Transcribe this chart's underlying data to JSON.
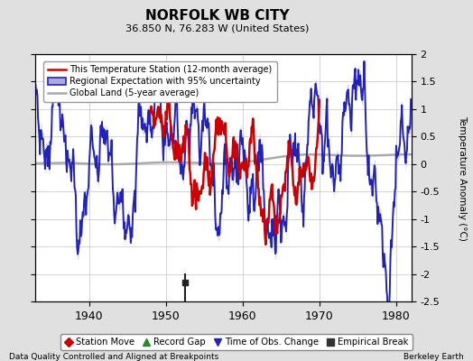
{
  "title": "NORFOLK WB CITY",
  "subtitle": "36.850 N, 76.283 W (United States)",
  "ylabel": "Temperature Anomaly (°C)",
  "xlim": [
    1933,
    1982
  ],
  "ylim": [
    -2.5,
    2.0
  ],
  "yticks": [
    -2.5,
    -2.0,
    -1.5,
    -1.0,
    -0.5,
    0.0,
    0.5,
    1.0,
    1.5,
    2.0
  ],
  "xticks": [
    1940,
    1950,
    1960,
    1970,
    1980
  ],
  "bg_color": "#e0e0e0",
  "plot_bg_color": "#ffffff",
  "grid_color": "#cccccc",
  "empirical_break_year": 1952.5,
  "empirical_break_value": -2.15,
  "legend_items": [
    {
      "label": "This Temperature Station (12-month average)",
      "color": "#cc0000",
      "lw": 1.8
    },
    {
      "label": "Regional Expectation with 95% uncertainty",
      "color": "#2222bb",
      "lw": 1.4
    },
    {
      "label": "Global Land (5-year average)",
      "color": "#aaaaaa",
      "lw": 1.8
    }
  ],
  "band_color": "#aaaadd",
  "band_alpha": 0.55,
  "marker_legend": [
    {
      "label": "Station Move",
      "color": "#cc0000",
      "marker": "D"
    },
    {
      "label": "Record Gap",
      "color": "#228B22",
      "marker": "^"
    },
    {
      "label": "Time of Obs. Change",
      "color": "#2222bb",
      "marker": "v"
    },
    {
      "label": "Empirical Break",
      "color": "#333333",
      "marker": "s"
    }
  ],
  "footnote_left": "Data Quality Controlled and Aligned at Breakpoints",
  "footnote_right": "Berkeley Earth",
  "station_start": 1948,
  "station_end": 1970
}
